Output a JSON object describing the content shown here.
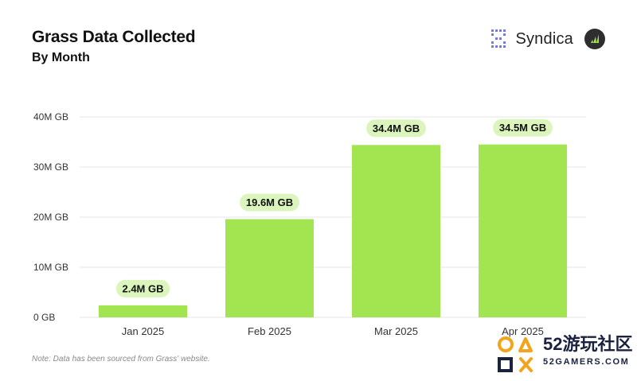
{
  "header": {
    "title": "Grass Data Collected",
    "subtitle": "By Month"
  },
  "brand": {
    "name": "Syndica",
    "logo_icon": "syndica-logo-icon",
    "badge_icon": "grass-logo-icon"
  },
  "note": "Note: Data has been sourced from Grass' website.",
  "watermark": {
    "main": "52游玩社区",
    "sub": "52GAMERS.COM"
  },
  "colors": {
    "bar": "#a3e451",
    "label_bg": "#dcf5bd",
    "grid": "#e6e6e6",
    "text": "#111111",
    "axis_text": "#333333"
  },
  "chart_data": {
    "type": "bar",
    "title": "Grass Data Collected",
    "subtitle": "By Month",
    "categories": [
      "Jan 2025",
      "Feb 2025",
      "Mar 2025",
      "Apr 2025"
    ],
    "values": [
      2.4,
      19.6,
      34.4,
      34.5
    ],
    "value_labels": [
      "2.4M GB",
      "19.6M GB",
      "34.4M GB",
      "34.5M GB"
    ],
    "ylabel": "",
    "xlabel": "",
    "ylim": [
      0,
      40
    ],
    "yticks": [
      0,
      10,
      20,
      30,
      40
    ],
    "ytick_labels": [
      "0 GB",
      "10M GB",
      "20M GB",
      "30M GB",
      "40M GB"
    ],
    "grid": true,
    "legend": "none"
  }
}
